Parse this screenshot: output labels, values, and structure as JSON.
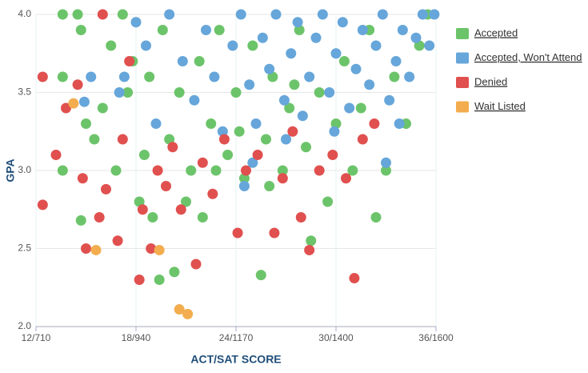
{
  "chart_data": {
    "type": "scatter",
    "x_label": "ACT/SAT SCORE",
    "y_label": "GPA",
    "xlim": [
      12,
      36
    ],
    "ylim": [
      2.0,
      4.0
    ],
    "xticks": [
      {
        "value": 12,
        "label": "12/710"
      },
      {
        "value": 18,
        "label": "18/940"
      },
      {
        "value": 24,
        "label": "24/1170"
      },
      {
        "value": 30,
        "label": "30/1400"
      },
      {
        "value": 36,
        "label": "36/1600"
      }
    ],
    "yticks": [
      {
        "value": 2.0,
        "label": "2.0"
      },
      {
        "value": 2.5,
        "label": "2.5"
      },
      {
        "value": 3.0,
        "label": "3.0"
      },
      {
        "value": 3.5,
        "label": "3.5"
      },
      {
        "value": 4.0,
        "label": "4.0"
      }
    ],
    "grid": true,
    "legend": "right",
    "series": [
      {
        "name": "Accepted",
        "color": "#6cc46a",
        "x": [
          13.6,
          14.5,
          13.6,
          13.6,
          14.7,
          14.7,
          15.0,
          15.5,
          16.0,
          16.5,
          16.8,
          17.2,
          17.5,
          17.8,
          18.2,
          18.5,
          18.8,
          19.0,
          19.4,
          19.6,
          20.0,
          20.3,
          20.6,
          21.0,
          21.3,
          21.8,
          22.0,
          22.5,
          23.0,
          23.5,
          24.0,
          24.5,
          25.0,
          25.5,
          25.8,
          26.2,
          26.8,
          27.2,
          27.8,
          28.2,
          28.5,
          29.0,
          29.5,
          30.0,
          30.5,
          31.0,
          31.5,
          32.0,
          32.4,
          33.0,
          33.5,
          34.2,
          35.0,
          35.5,
          22.8,
          24.2,
          26.0,
          27.5
        ],
        "values": [
          4.0,
          4.0,
          3.6,
          3.0,
          2.68,
          3.9,
          3.3,
          3.2,
          3.4,
          3.8,
          3.0,
          4.0,
          3.5,
          3.7,
          2.8,
          3.1,
          3.6,
          2.7,
          2.3,
          3.9,
          3.2,
          2.35,
          3.5,
          2.8,
          3.0,
          3.7,
          2.7,
          3.3,
          3.9,
          3.1,
          3.5,
          2.95,
          3.8,
          2.33,
          3.2,
          3.6,
          3.0,
          3.4,
          3.9,
          3.15,
          2.55,
          3.5,
          2.8,
          3.3,
          3.7,
          3.0,
          3.4,
          3.9,
          2.7,
          3.0,
          3.6,
          3.3,
          3.8,
          4.0,
          3.0,
          3.25,
          2.9,
          3.55
        ]
      },
      {
        "name": "Accepted, Won't Attend",
        "color": "#66a6da",
        "x": [
          14.9,
          15.3,
          17.3,
          17.0,
          18.0,
          18.6,
          19.2,
          20.0,
          20.8,
          21.5,
          22.2,
          22.7,
          23.2,
          23.8,
          24.3,
          24.8,
          25.2,
          25.6,
          26.0,
          26.4,
          26.9,
          27.3,
          27.7,
          28.0,
          28.4,
          28.8,
          29.2,
          29.6,
          30.0,
          30.4,
          30.8,
          31.2,
          31.6,
          32.0,
          32.4,
          32.8,
          33.2,
          33.6,
          34.0,
          34.4,
          34.8,
          35.2,
          35.6,
          35.9,
          24.5,
          33.0,
          33.8,
          27.0,
          29.9,
          25.0
        ],
        "values": [
          3.44,
          3.6,
          3.6,
          3.5,
          3.95,
          3.8,
          3.3,
          4.0,
          3.7,
          3.45,
          3.9,
          3.6,
          3.25,
          3.8,
          4.0,
          3.55,
          3.3,
          3.85,
          3.65,
          4.0,
          3.45,
          3.75,
          3.95,
          3.35,
          3.6,
          3.85,
          4.0,
          3.5,
          3.75,
          3.95,
          3.4,
          3.65,
          3.9,
          3.55,
          3.8,
          4.0,
          3.45,
          3.7,
          3.9,
          3.6,
          3.85,
          4.0,
          3.8,
          4.0,
          2.9,
          3.05,
          3.3,
          3.2,
          3.25,
          3.05
        ]
      },
      {
        "name": "Denied",
        "color": "#e0504f",
        "x": [
          12.4,
          12.4,
          13.2,
          14.5,
          14.8,
          15.0,
          15.8,
          16.2,
          16.9,
          17.2,
          17.6,
          18.2,
          18.4,
          18.9,
          19.3,
          19.8,
          20.2,
          20.7,
          21.6,
          22.0,
          22.6,
          23.3,
          24.1,
          24.6,
          25.3,
          26.3,
          26.8,
          27.4,
          27.9,
          28.4,
          29.0,
          29.8,
          30.6,
          31.1,
          31.6,
          32.3,
          16.0,
          13.8
        ],
        "values": [
          3.6,
          2.78,
          3.1,
          3.55,
          2.95,
          2.5,
          2.7,
          2.88,
          2.55,
          3.2,
          3.7,
          2.3,
          2.75,
          2.5,
          3.0,
          2.9,
          3.15,
          2.75,
          2.4,
          3.05,
          2.85,
          3.2,
          2.6,
          3.0,
          3.1,
          2.6,
          2.95,
          3.25,
          2.7,
          2.49,
          3.0,
          3.1,
          2.95,
          2.31,
          3.2,
          3.3,
          4.0,
          3.4
        ]
      },
      {
        "name": "Wait Listed",
        "color": "#f3ad4e",
        "x": [
          14.25,
          15.6,
          19.4,
          20.6,
          21.1
        ],
        "values": [
          3.43,
          2.49,
          2.49,
          2.11,
          2.08
        ]
      }
    ]
  }
}
